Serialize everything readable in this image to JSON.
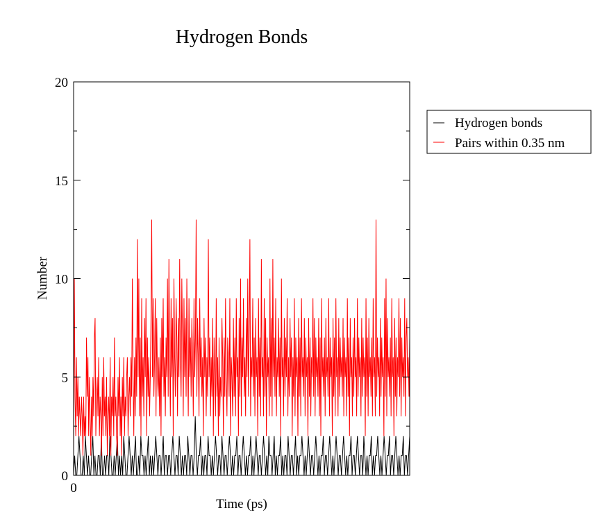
{
  "chart_data": {
    "type": "line",
    "title": "Hydrogen Bonds",
    "xlabel": "Time (ps)",
    "ylabel": "Number",
    "xlim": [
      0,
      1000
    ],
    "ylim": [
      0,
      20
    ],
    "x_ticks": [
      "0"
    ],
    "y_ticks": [
      "0",
      "5",
      "10",
      "15",
      "20"
    ],
    "y_tick_values": [
      0,
      5,
      10,
      15,
      20
    ],
    "grid": false,
    "legend_position": "right",
    "series": [
      {
        "name": "Hydrogen bonds",
        "color": "#000000",
        "values": [
          0,
          1,
          0,
          0,
          1,
          2,
          1,
          0,
          0,
          1,
          0,
          2,
          1,
          0,
          1,
          0,
          0,
          1,
          2,
          0,
          1,
          0,
          0,
          1,
          1,
          0,
          2,
          0,
          0,
          1,
          0,
          1,
          1,
          0,
          2,
          1,
          0,
          0,
          1,
          0,
          1,
          2,
          0,
          1,
          0,
          1,
          0,
          2,
          1,
          0,
          0,
          1,
          2,
          1,
          0,
          1,
          0,
          1,
          2,
          0,
          0,
          1,
          0,
          2,
          1,
          1,
          0,
          1,
          0,
          1,
          2,
          0,
          1,
          0,
          1,
          0,
          1,
          2,
          1,
          0,
          1,
          1,
          0,
          1,
          2,
          0,
          1,
          1,
          0,
          1,
          1,
          0,
          1,
          2,
          1,
          0,
          1,
          1,
          0,
          2,
          1,
          0,
          1,
          0,
          1,
          1,
          0,
          2,
          1,
          0,
          1,
          1,
          0,
          1,
          3,
          1,
          0,
          1,
          1,
          2,
          0,
          1,
          0,
          1,
          1,
          0,
          2,
          1,
          1,
          0,
          1,
          0,
          1,
          2,
          1,
          0,
          1,
          1,
          0,
          2,
          1,
          0,
          1,
          1,
          0,
          1,
          2,
          1,
          0,
          1,
          0,
          1,
          1,
          2,
          0,
          1,
          1,
          0,
          1,
          2,
          1,
          0,
          1,
          0,
          1,
          1,
          2,
          0,
          1,
          0,
          1,
          2,
          1,
          0,
          1,
          1,
          0,
          1,
          2,
          1,
          0,
          1,
          0,
          2,
          1,
          1,
          0,
          1,
          2,
          0,
          1,
          0,
          1,
          1,
          2,
          0,
          1,
          0,
          1,
          1,
          0,
          2,
          1,
          0,
          1,
          1,
          0,
          1,
          2,
          0,
          1,
          0,
          1,
          1,
          2,
          1,
          0,
          1,
          0,
          1,
          2,
          1,
          0,
          1,
          1,
          0,
          1,
          2,
          1,
          0,
          1,
          0,
          1,
          1,
          2,
          0,
          1,
          1,
          0,
          1,
          2,
          1,
          0,
          1,
          0,
          1,
          2,
          1,
          0,
          1,
          1,
          0,
          1,
          2,
          1,
          0,
          1,
          0,
          1,
          1,
          2,
          0,
          1,
          1,
          0,
          1,
          2,
          1,
          0,
          1,
          1,
          0,
          2,
          1,
          0,
          1,
          0,
          1,
          1,
          2,
          0,
          1,
          0,
          1,
          1,
          2,
          1,
          0,
          1,
          0,
          1,
          2,
          1,
          0,
          1,
          1,
          2,
          0,
          1,
          1,
          0,
          1,
          2,
          1,
          0,
          1,
          0,
          1,
          1,
          2,
          0,
          1,
          1,
          0,
          1,
          2
        ]
      },
      {
        "name": "Pairs within 0.35 nm",
        "color": "#ff0000",
        "values": [
          1,
          10,
          4,
          2,
          6,
          3,
          5,
          2,
          4,
          3,
          2,
          4,
          3,
          1,
          4,
          2,
          3,
          2,
          7,
          4,
          6,
          2,
          5,
          3,
          1,
          4,
          2,
          5,
          3,
          7,
          8,
          2,
          4,
          5,
          3,
          6,
          2,
          4,
          3,
          1,
          5,
          2,
          6,
          3,
          4,
          2,
          5,
          1,
          3,
          4,
          2,
          6,
          1,
          4,
          3,
          5,
          2,
          7,
          3,
          4,
          2,
          1,
          5,
          3,
          6,
          2,
          4,
          1,
          5,
          3,
          6,
          2,
          4,
          3,
          5,
          6,
          2,
          4,
          5,
          3,
          6,
          4,
          10,
          5,
          2,
          6,
          3,
          7,
          4,
          12,
          5,
          10,
          3,
          7,
          2,
          9,
          4,
          6,
          3,
          8,
          5,
          9,
          2,
          7,
          4,
          6,
          3,
          5,
          8,
          13,
          5,
          9,
          4,
          6,
          9,
          3,
          8,
          5,
          4,
          6,
          3,
          7,
          2,
          8,
          5,
          9,
          4,
          6,
          3,
          7,
          5,
          10,
          4,
          11,
          6,
          3,
          9,
          5,
          8,
          2,
          10,
          6,
          4,
          9,
          7,
          3,
          8,
          5,
          11,
          6,
          4,
          10,
          7,
          3,
          9,
          5,
          8,
          4,
          10,
          6,
          3,
          9,
          5,
          7,
          4,
          8,
          6,
          3,
          9,
          5,
          7,
          13,
          4,
          8,
          6,
          3,
          9,
          5,
          7,
          4,
          6,
          2,
          8,
          5,
          7,
          3,
          6,
          4,
          12,
          5,
          7,
          3,
          6,
          4,
          8,
          2,
          7,
          5,
          3,
          9,
          4,
          6,
          2,
          7,
          3,
          5,
          4,
          8,
          6,
          2,
          7,
          4,
          9,
          5,
          3,
          7,
          6,
          4,
          9,
          2,
          6,
          5,
          3,
          8,
          4,
          7,
          3,
          9,
          5,
          6,
          2,
          8,
          4,
          10,
          3,
          7,
          5,
          9,
          4,
          6,
          3,
          8,
          5,
          10,
          4,
          7,
          12,
          3,
          6,
          5,
          9,
          4,
          7,
          3,
          8,
          5,
          6,
          2,
          9,
          4,
          7,
          3,
          11,
          5,
          6,
          3,
          9,
          4,
          8,
          2,
          7,
          5,
          6,
          3,
          10,
          4,
          8,
          3,
          11,
          5,
          7,
          4,
          9,
          3,
          6,
          5,
          8,
          4,
          7,
          2,
          10,
          5,
          6,
          3,
          8,
          4,
          7,
          5,
          9,
          3,
          6,
          4,
          8,
          5,
          7,
          2,
          6,
          4,
          9,
          3,
          7,
          5,
          6,
          2,
          8,
          4,
          7,
          3,
          9,
          5,
          6,
          4,
          8,
          3,
          7,
          5,
          6,
          2,
          8,
          4,
          7,
          3,
          6,
          5,
          9,
          4,
          8,
          3,
          7,
          5,
          6,
          4,
          8,
          3,
          7,
          2,
          9,
          5,
          6,
          4,
          7,
          3,
          8,
          5,
          6,
          4,
          9,
          3,
          7,
          5,
          6,
          2,
          8,
          4,
          7,
          3,
          9,
          5,
          6,
          3,
          8,
          4,
          7,
          5,
          6,
          4,
          8,
          3,
          7,
          5,
          6,
          3,
          9,
          4,
          7,
          2,
          8,
          5,
          6,
          3,
          7,
          4,
          8,
          5,
          6,
          3,
          9,
          4,
          7,
          5,
          6,
          3,
          8,
          4,
          7,
          5,
          6,
          2,
          9,
          4,
          7,
          3,
          8,
          5,
          6,
          4,
          7,
          3,
          9,
          5,
          6,
          3,
          13,
          4,
          7,
          5,
          6,
          3,
          8,
          4,
          7,
          5,
          6,
          2,
          9,
          4,
          10,
          3,
          8,
          5,
          6,
          4,
          7,
          3,
          9,
          5,
          6,
          2,
          8,
          4,
          7,
          3,
          6,
          5,
          9,
          4,
          8,
          3,
          7,
          5,
          6,
          4,
          9,
          3,
          7,
          8,
          5,
          6,
          4,
          7
        ]
      }
    ]
  }
}
